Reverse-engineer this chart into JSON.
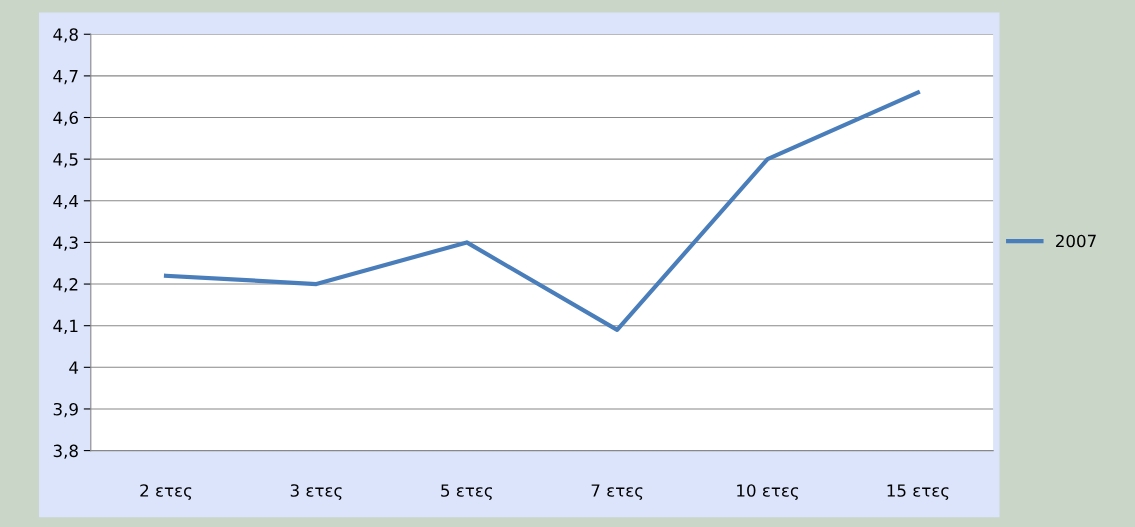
{
  "chart_data": {
    "type": "line",
    "categories": [
      "2 ετες",
      "3 ετες",
      "5 ετες",
      "7 ετες",
      "10 ετες",
      "15 ετες"
    ],
    "series": [
      {
        "name": "2007",
        "color": "#4a7ebb",
        "values": [
          4.22,
          4.2,
          4.3,
          4.09,
          4.5,
          4.66
        ]
      }
    ],
    "ylim": [
      3.8,
      4.8
    ],
    "yticks": [
      {
        "value": 3.8,
        "label": "3,8"
      },
      {
        "value": 3.9,
        "label": "3,9"
      },
      {
        "value": 4,
        "label": "4"
      },
      {
        "value": 4.1,
        "label": "4,1"
      },
      {
        "value": 4.2,
        "label": "4,2"
      },
      {
        "value": 4.3,
        "label": "4,3"
      },
      {
        "value": 4.4,
        "label": "4,4"
      },
      {
        "value": 4.5,
        "label": "4,5"
      },
      {
        "value": 4.6,
        "label": "4,6"
      },
      {
        "value": 4.7,
        "label": "4,7"
      },
      {
        "value": 4.8,
        "label": "4,8"
      }
    ],
    "grid": "y",
    "legend": "right",
    "marker": "none",
    "line_style": "solid"
  }
}
